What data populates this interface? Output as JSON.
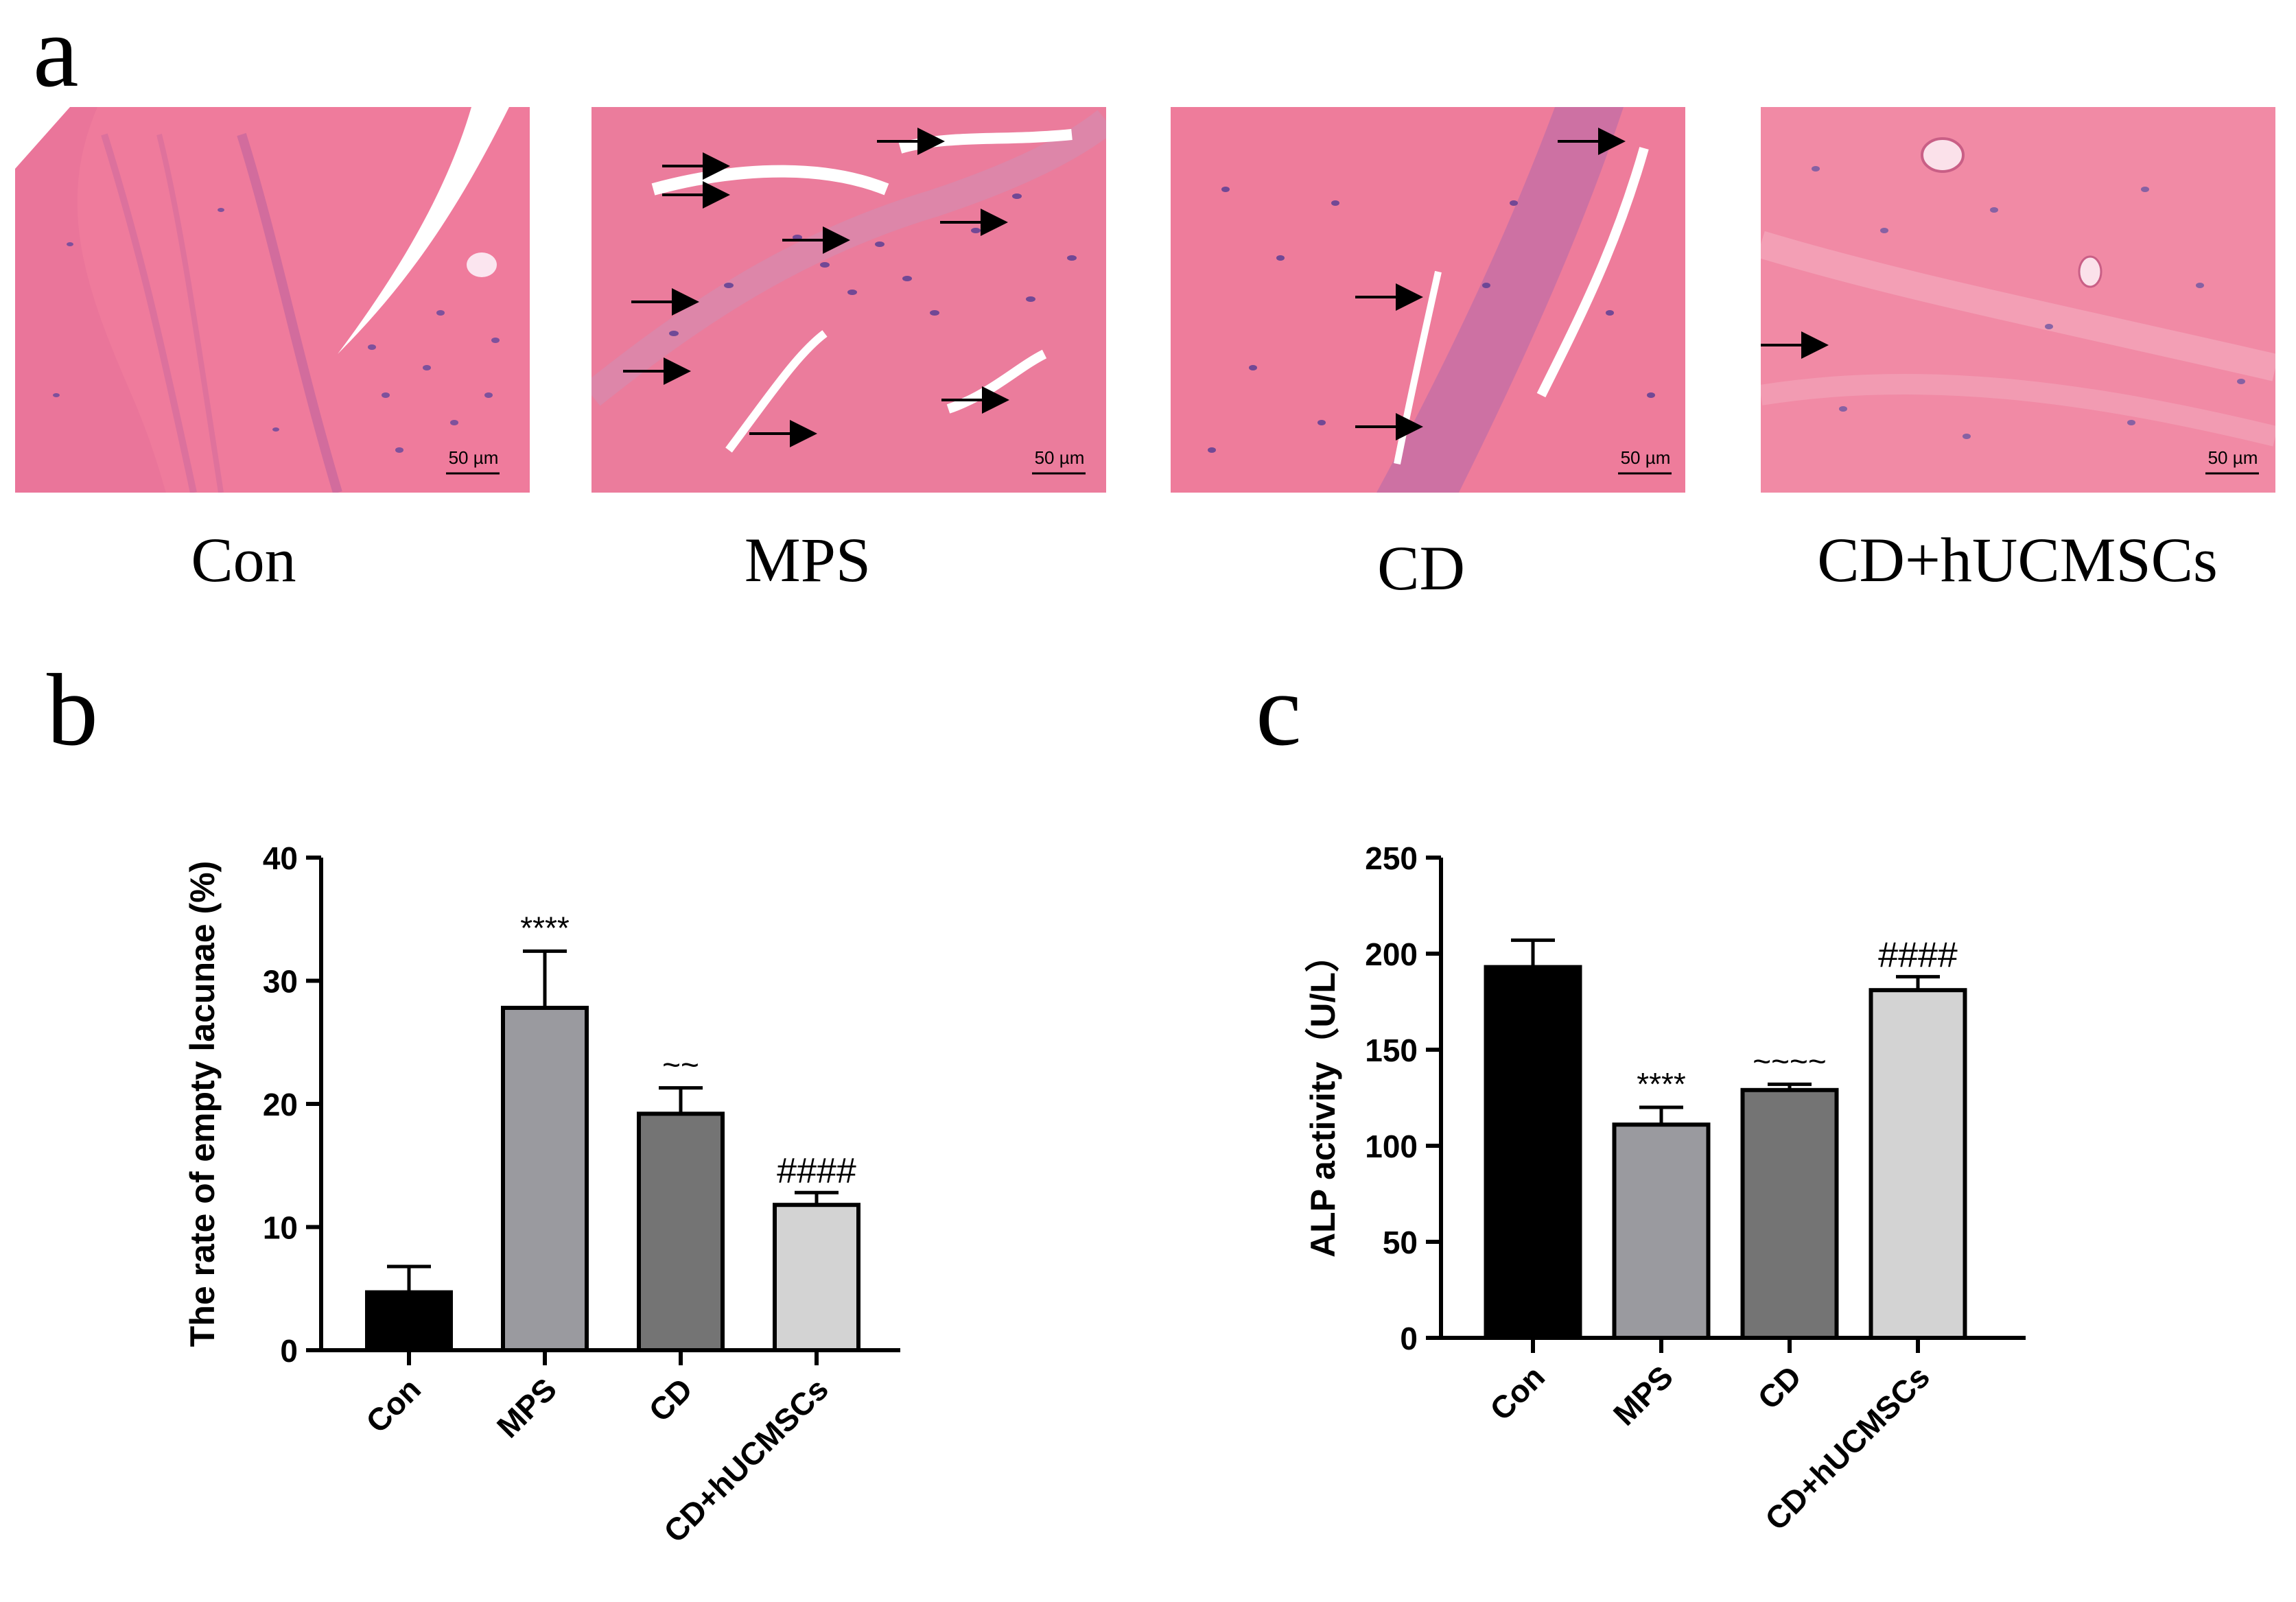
{
  "panels": {
    "a": "a",
    "b": "b",
    "c": "c"
  },
  "histology": {
    "scale_bar": "50 µm",
    "images": [
      {
        "group": "Con"
      },
      {
        "group": "MPS"
      },
      {
        "group": "CD"
      },
      {
        "group": "CD+hUCMSCs"
      }
    ]
  },
  "chart_data": [
    {
      "type": "bar",
      "categories": [
        "Con",
        "MPS",
        "CD",
        "CD+hUCMSCs"
      ],
      "values": [
        4.7,
        27.8,
        19.2,
        11.8
      ],
      "errors": [
        2.1,
        4.6,
        2.1,
        1.0
      ],
      "annotations": [
        "",
        "****",
        "~~",
        "####"
      ],
      "colors": [
        "#000000",
        "#9a9a9f",
        "#747474",
        "#d3d3d3"
      ],
      "xlabel": "",
      "ylabel": "The rate of empty lacunae (%)",
      "ylim": [
        0,
        40
      ],
      "yticks": [
        0,
        10,
        20,
        30,
        40
      ],
      "grid": false
    },
    {
      "type": "bar",
      "categories": [
        "Con",
        "MPS",
        "CD",
        "CD+hUCMSCs"
      ],
      "values": [
        193,
        111,
        129,
        181
      ],
      "errors": [
        14,
        9,
        3,
        7
      ],
      "annotations": [
        "",
        "****",
        "~~~~",
        "####"
      ],
      "colors": [
        "#000000",
        "#9a9a9f",
        "#747474",
        "#d3d3d3"
      ],
      "xlabel": "",
      "ylabel": "ALP activity（U/L）",
      "ylim": [
        0,
        250
      ],
      "yticks": [
        0,
        50,
        100,
        150,
        200,
        250
      ],
      "grid": false
    }
  ]
}
